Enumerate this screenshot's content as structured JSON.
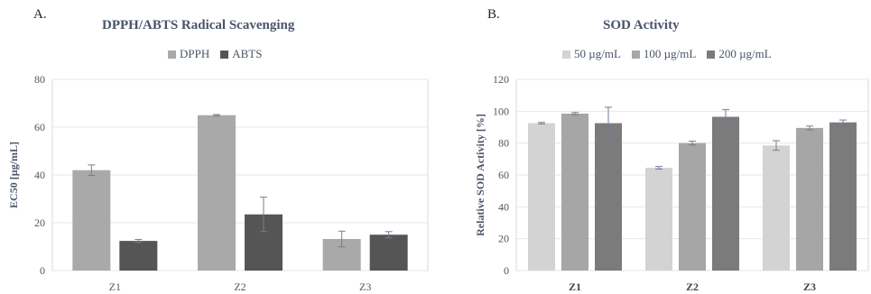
{
  "chart_data": [
    {
      "panel": "A.",
      "type": "bar",
      "title": "DPPH/ABTS Radical Scavenging",
      "xlabel": "",
      "ylabel": "EC50 [µg/mL]",
      "ylim": [
        0,
        80
      ],
      "yticks": [
        0,
        20,
        40,
        60,
        80
      ],
      "grid": true,
      "legend_position": "top",
      "categories": [
        "Z1",
        "Z2",
        "Z3"
      ],
      "series": [
        {
          "name": "DPPH",
          "color": "#a9a9a9",
          "values": [
            42,
            65,
            13.2
          ],
          "errors": [
            2.2,
            0.3,
            3.3
          ]
        },
        {
          "name": "ABTS",
          "color": "#555555",
          "values": [
            12.4,
            23.5,
            15
          ],
          "errors": [
            0.6,
            7.2,
            1.3
          ]
        }
      ]
    },
    {
      "panel": "B.",
      "type": "bar",
      "title": "SOD  Activity",
      "xlabel": "",
      "ylabel": "Relative SOD Activity [%]",
      "ylim": [
        0,
        120
      ],
      "yticks": [
        0,
        20,
        40,
        60,
        80,
        100,
        120
      ],
      "grid": true,
      "legend_position": "top",
      "categories": [
        "Z1",
        "Z2",
        "Z3"
      ],
      "series": [
        {
          "name": "50 µg/mL",
          "color": "#d3d3d3",
          "values": [
            92.5,
            64.5,
            78.5
          ],
          "errors": [
            0.5,
            0.8,
            3
          ]
        },
        {
          "name": "100 µg/mL",
          "color": "#a6a6a6",
          "values": [
            98.5,
            80,
            89.5
          ],
          "errors": [
            0.7,
            1.2,
            1.2
          ]
        },
        {
          "name": "200 µg/mL",
          "color": "#7b7b7b",
          "values": [
            92.5,
            96.5,
            93
          ],
          "errors": [
            10,
            4.5,
            1.5
          ]
        }
      ]
    }
  ]
}
